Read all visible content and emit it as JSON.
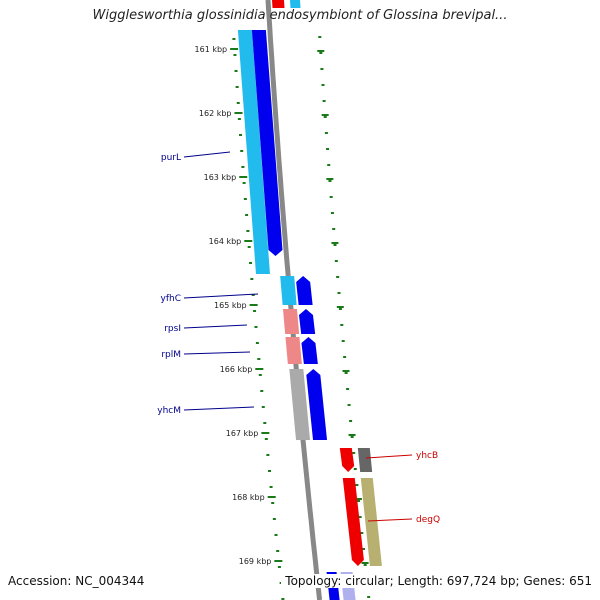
{
  "title": "Wigglesworthia glossinidia endosymbiont of Glossina brevipal...",
  "footer": {
    "accession": "Accession: NC_004344",
    "summary": "Topology: circular; Length: 697,724 bp; Genes: 651"
  },
  "ticks": [
    "161 kbp",
    "162 kbp",
    "163 kbp",
    "164 kbp",
    "165 kbp",
    "166 kbp",
    "167 kbp",
    "168 kbp",
    "169 kbp"
  ],
  "genes_left": [
    {
      "label": "purL",
      "color": "#00008b"
    },
    {
      "label": "yfhC",
      "color": "#00008b"
    },
    {
      "label": "rpsI",
      "color": "#00008b"
    },
    {
      "label": "rplM",
      "color": "#00008b"
    },
    {
      "label": "yhcM",
      "color": "#00008b"
    }
  ],
  "genes_right": [
    {
      "label": "yhcB",
      "color": "#cc0000"
    },
    {
      "label": "degQ",
      "color": "#cc0000"
    }
  ],
  "colors": {
    "tick": "#1a7a1a",
    "backbone": "#888888",
    "forward_strand": "#0000ee",
    "cog_cyan": "#22bbee",
    "cog_pink": "#ee8888",
    "cog_gray": "#aaaaaa",
    "cog_red": "#ee0000",
    "cog_darkgray": "#666666",
    "cog_khaki": "#b8b070"
  }
}
